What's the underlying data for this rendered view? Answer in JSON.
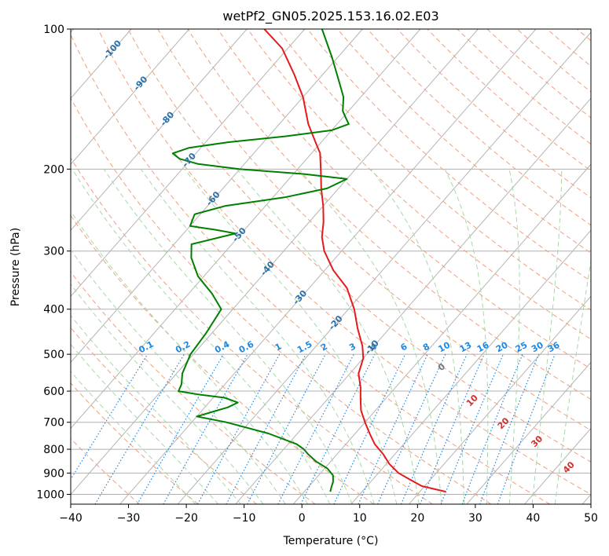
{
  "chart_data": {
    "type": "line",
    "title": "wetPf2_GN05.2025.153.16.02.E03",
    "xlabel": "Temperature (°C)",
    "ylabel": "Pressure (hPa)",
    "xlim": [
      -40,
      50
    ],
    "ylim": [
      1050,
      100
    ],
    "y_scale": "log",
    "grid": true,
    "x_ticks": [
      -40,
      -30,
      -20,
      -10,
      0,
      10,
      20,
      30,
      40,
      50
    ],
    "x_tick_labels": [
      "−40",
      "−30",
      "−20",
      "−10",
      "0",
      "10",
      "20",
      "30",
      "40",
      "50"
    ],
    "y_ticks": [
      100,
      200,
      300,
      400,
      500,
      600,
      700,
      800,
      900,
      1000
    ],
    "y_tick_labels": [
      "100",
      "200",
      "300",
      "400",
      "500",
      "600",
      "700",
      "800",
      "900",
      "1000"
    ],
    "series": [
      {
        "role": "temperature",
        "color": "#e41a1c",
        "points": [
          [
            987,
            24.5
          ],
          [
            960,
            19.5
          ],
          [
            930,
            16.5
          ],
          [
            900,
            13.5
          ],
          [
            860,
            10.5
          ],
          [
            820,
            8.0
          ],
          [
            780,
            5.0
          ],
          [
            740,
            2.5
          ],
          [
            700,
            0.0
          ],
          [
            660,
            -2.5
          ],
          [
            620,
            -4.5
          ],
          [
            590,
            -6.0
          ],
          [
            550,
            -8.5
          ],
          [
            510,
            -10.0
          ],
          [
            480,
            -12.0
          ],
          [
            440,
            -15.5
          ],
          [
            400,
            -19.0
          ],
          [
            360,
            -23.5
          ],
          [
            330,
            -28.5
          ],
          [
            300,
            -33.0
          ],
          [
            280,
            -35.5
          ],
          [
            260,
            -37.5
          ],
          [
            240,
            -40.0
          ],
          [
            220,
            -43.0
          ],
          [
            200,
            -46.0
          ],
          [
            185,
            -48.5
          ],
          [
            175,
            -51.0
          ],
          [
            160,
            -55.0
          ],
          [
            140,
            -60.0
          ],
          [
            125,
            -65.0
          ],
          [
            110,
            -71.0
          ],
          [
            100,
            -77.0
          ]
        ]
      },
      {
        "role": "dewpoint",
        "color": "#008000",
        "points": [
          [
            987,
            4.5
          ],
          [
            965,
            4.0
          ],
          [
            940,
            3.5
          ],
          [
            910,
            2.5
          ],
          [
            880,
            0.5
          ],
          [
            850,
            -2.5
          ],
          [
            820,
            -5.0
          ],
          [
            800,
            -6.5
          ],
          [
            780,
            -8.5
          ],
          [
            740,
            -15.0
          ],
          [
            700,
            -24.0
          ],
          [
            680,
            -30.0
          ],
          [
            665,
            -28.0
          ],
          [
            650,
            -26.0
          ],
          [
            635,
            -25.0
          ],
          [
            620,
            -28.0
          ],
          [
            610,
            -33.0
          ],
          [
            600,
            -37.0
          ],
          [
            580,
            -37.5
          ],
          [
            550,
            -39.0
          ],
          [
            500,
            -40.5
          ],
          [
            450,
            -41.0
          ],
          [
            400,
            -42.0
          ],
          [
            370,
            -46.0
          ],
          [
            340,
            -51.0
          ],
          [
            310,
            -55.0
          ],
          [
            290,
            -57.0
          ],
          [
            280,
            -53.0
          ],
          [
            275,
            -51.0
          ],
          [
            270,
            -55.0
          ],
          [
            265,
            -60.0
          ],
          [
            250,
            -61.0
          ],
          [
            240,
            -57.0
          ],
          [
            230,
            -48.0
          ],
          [
            220,
            -42.0
          ],
          [
            210,
            -40.0
          ],
          [
            205,
            -48.0
          ],
          [
            200,
            -60.0
          ],
          [
            195,
            -68.0
          ],
          [
            190,
            -72.0
          ],
          [
            185,
            -74.0
          ],
          [
            180,
            -72.0
          ],
          [
            175,
            -66.0
          ],
          [
            170,
            -57.0
          ],
          [
            165,
            -50.0
          ],
          [
            160,
            -48.0
          ],
          [
            155,
            -49.5
          ],
          [
            150,
            -51.0
          ],
          [
            140,
            -53.0
          ],
          [
            130,
            -56.0
          ],
          [
            115,
            -61.0
          ],
          [
            100,
            -67.0
          ]
        ]
      }
    ],
    "dry_adiabat_labels": [
      "-100",
      "-90",
      "-80",
      "-70",
      "-60",
      "-50",
      "-40",
      "-30",
      "-20",
      "-10"
    ],
    "dry_adiabat_label_points": [
      [
        -100,
        110
      ],
      [
        -90,
        130
      ],
      [
        -80,
        155
      ],
      [
        -70,
        190
      ],
      [
        -60,
        230
      ],
      [
        -50,
        275
      ],
      [
        -40,
        325
      ],
      [
        -30,
        375
      ],
      [
        -20,
        425
      ],
      [
        -10,
        480
      ]
    ],
    "mixing_ratio_labels": [
      "0.1",
      "0.2",
      "0.4",
      "0.6",
      "1",
      "1.5",
      "2",
      "3",
      "4",
      "6",
      "8",
      "10",
      "13",
      "16",
      "20",
      "25",
      "30",
      "36"
    ],
    "mixing_ratio_values": [
      0.1,
      0.2,
      0.4,
      0.6,
      1,
      1.5,
      2,
      3,
      4,
      6,
      8,
      10,
      13,
      16,
      20,
      25,
      30,
      36
    ],
    "moist_adiabat_labels": [
      "0",
      "10",
      "20",
      "30",
      "40"
    ],
    "moist_adiabat_label_points": [
      [
        0,
        24.5,
        530
      ],
      [
        10,
        29.8,
        625
      ],
      [
        20,
        35.2,
        700
      ],
      [
        30,
        41.0,
        765
      ],
      [
        40,
        46.5,
        870
      ]
    ],
    "colors": {
      "isotherm": "#b5b5b5",
      "dry_adiabat": "#f0a080",
      "moist_adiabat": "#a8d8a8",
      "mixing_ratio": "#1e88e5",
      "grid": "#b0b0b0"
    }
  }
}
